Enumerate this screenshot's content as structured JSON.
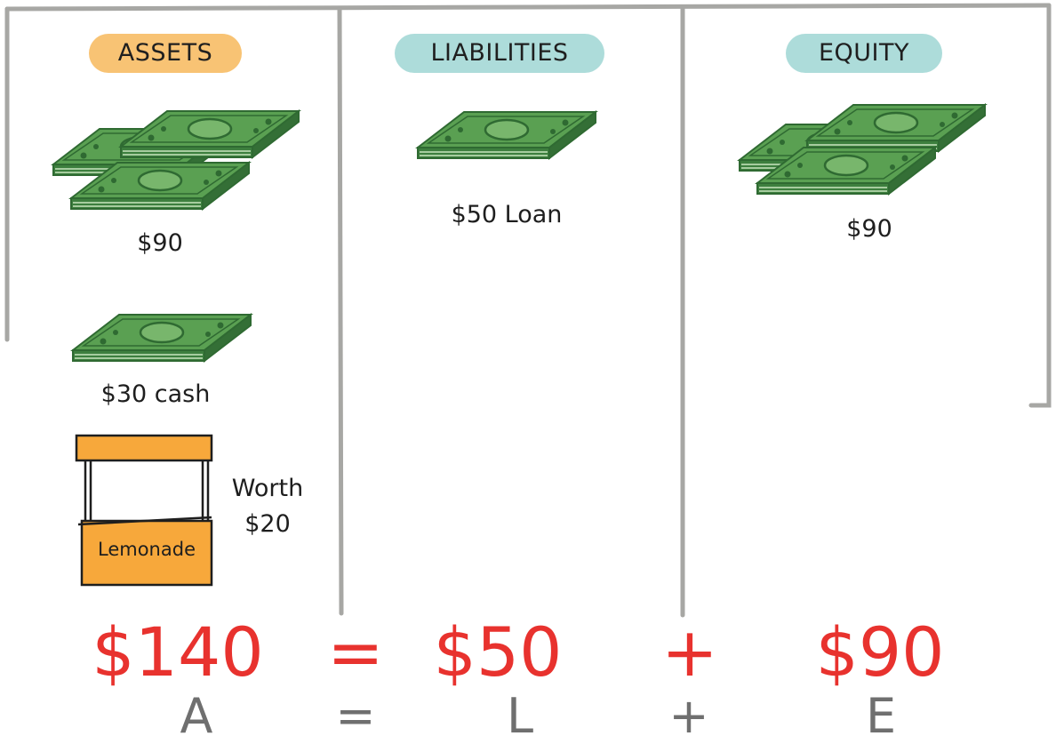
{
  "columns": {
    "assets": {
      "title": "ASSETS",
      "highlight_color": "#f7b95c",
      "items": {
        "money_value": "$90",
        "cash_value": "$30 cash",
        "stand_sign": "Lemonade",
        "stand_worth_line1": "Worth",
        "stand_worth_line2": "$20"
      }
    },
    "liabilities": {
      "title": "LIABILITIES",
      "highlight_color": "#9fd6d4",
      "items": {
        "loan_value": "$50 Loan"
      }
    },
    "equity": {
      "title": "EQUITY",
      "highlight_color": "#9fd6d4",
      "items": {
        "equity_value": "$90"
      }
    }
  },
  "equation": {
    "assets_total": "$140",
    "equals": "=",
    "liabilities_total": "$50",
    "plus": "+",
    "equity_total": "$90",
    "color": "#e8322e"
  },
  "formula": {
    "a": "A",
    "equals": "=",
    "l": "L",
    "plus": "+",
    "e": "E"
  },
  "colors": {
    "money": "#5aa052",
    "money_dark": "#2f6a32",
    "stand": "#f7a83b",
    "frame": "#a7a7a4"
  }
}
